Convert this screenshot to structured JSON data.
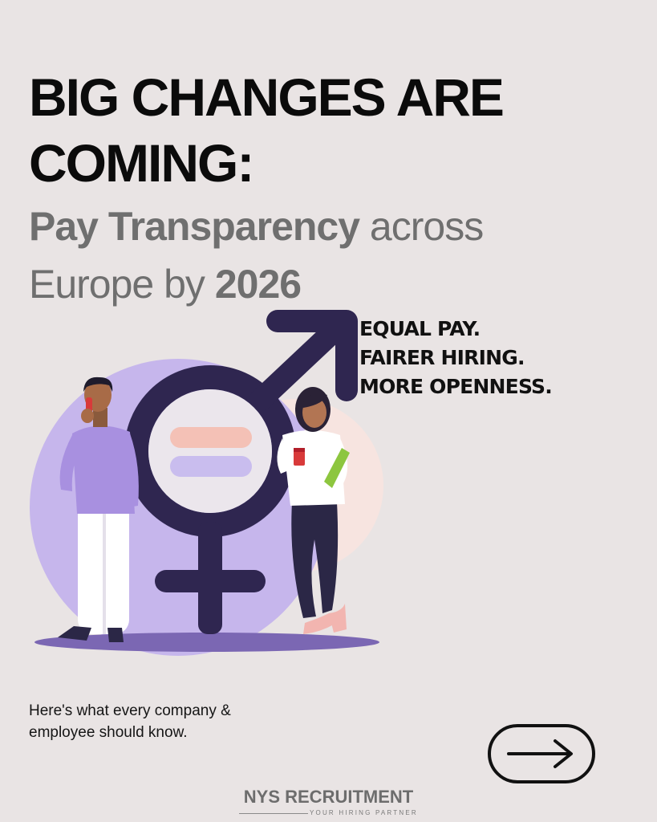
{
  "headline": {
    "line1": "BIG CHANGES ARE",
    "line2": "COMING:"
  },
  "subheadline": {
    "bold1": "Pay Transparency",
    "normal1": " across",
    "normal2": "Europe by ",
    "bold2": "2026"
  },
  "tagline": {
    "line1": "EQUAL PAY.",
    "line2": "FAIRER HIRING.",
    "line3": "MORE OPENNESS."
  },
  "illustration": {
    "symbol_color": "#2f2650",
    "circle_color": "#c4b4ea",
    "equals_top_color": "#f4c1b6",
    "equals_bottom_color": "#c9bdee"
  },
  "note": {
    "line1": "Here's what every company &",
    "line2": "employee should know."
  },
  "next_button": {
    "icon": "arrow-right-icon"
  },
  "brand": {
    "name": "NYS RECRUITMENT",
    "tagline": "YOUR HIRING PARTNER"
  }
}
